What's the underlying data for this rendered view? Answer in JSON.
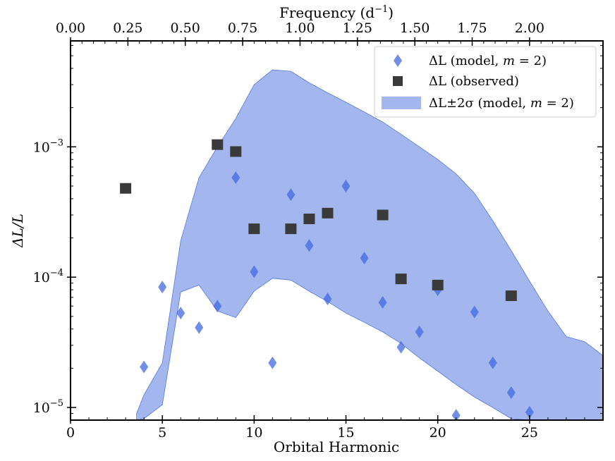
{
  "chart_data": {
    "type": "scatter",
    "title": "",
    "xlabel": "Orbital Harmonic",
    "ylabel": "ΔL/L",
    "xlim": [
      0,
      29
    ],
    "ylim": [
      8e-06,
      0.0065
    ],
    "yscale": "log",
    "x_ticks": [
      0,
      5,
      10,
      15,
      20,
      25
    ],
    "x_tick_labels": [
      "0",
      "5",
      "10",
      "15",
      "20",
      "25"
    ],
    "y_ticks": [
      1e-05,
      0.0001,
      0.001
    ],
    "y_tick_labels": [
      {
        "base": "10",
        "exp": "−5"
      },
      {
        "base": "10",
        "exp": "−4"
      },
      {
        "base": "10",
        "exp": "−3"
      }
    ],
    "top_axis": {
      "label": "Frequency (d⁻¹)",
      "label_base": "Frequency (d",
      "label_sup": "−1",
      "label_end": ")",
      "ticks": [
        0.0,
        0.25,
        0.5,
        0.75,
        1.0,
        1.25,
        1.5,
        1.75,
        2.0
      ],
      "tick_labels": [
        "0.00",
        "0.25",
        "0.50",
        "0.75",
        "1.00",
        "1.25",
        "1.50",
        "1.75",
        "2.00"
      ],
      "harmonics_per_unit": 12.5
    },
    "legend_position": "top-right",
    "series": [
      {
        "name": "ΔL (model, m = 2)",
        "marker": "diamond",
        "color": "#4169e1",
        "points": [
          [
            4,
            2.05e-05
          ],
          [
            5,
            8.4e-05
          ],
          [
            6,
            5.3e-05
          ],
          [
            7,
            4.1e-05
          ],
          [
            8,
            6e-05
          ],
          [
            9,
            0.00058
          ],
          [
            10,
            0.00011
          ],
          [
            11,
            2.2e-05
          ],
          [
            12,
            0.00043
          ],
          [
            13,
            0.000175
          ],
          [
            14,
            6.8e-05
          ],
          [
            15,
            0.0005
          ],
          [
            16,
            0.00014
          ],
          [
            17,
            6.4e-05
          ],
          [
            18,
            2.9e-05
          ],
          [
            19,
            3.8e-05
          ],
          [
            20,
            8e-05
          ],
          [
            21,
            8.7e-06
          ],
          [
            22,
            5.4e-05
          ],
          [
            23,
            2.2e-05
          ],
          [
            24,
            1.3e-05
          ],
          [
            25,
            9.2e-06
          ]
        ]
      },
      {
        "name": "ΔL (observed)",
        "marker": "square",
        "color": "#3a3a3a",
        "points": [
          [
            3,
            0.00048
          ],
          [
            8,
            0.00104
          ],
          [
            9,
            0.00092
          ],
          [
            10,
            0.000235
          ],
          [
            12,
            0.000235
          ],
          [
            13,
            0.00028
          ],
          [
            14,
            0.00031
          ],
          [
            17,
            0.0003
          ],
          [
            18,
            9.7e-05
          ],
          [
            20,
            8.7e-05
          ],
          [
            24,
            7.2e-05
          ]
        ]
      },
      {
        "name": "ΔL±2σ (model, m = 2)",
        "type": "band",
        "color": "#a3b6ee",
        "edge_color": "#5577dd",
        "x": [
          3.6,
          4,
          5,
          6,
          7,
          8,
          9,
          10,
          11,
          12,
          13,
          14,
          15,
          16,
          17,
          18,
          19,
          20,
          21,
          22,
          23,
          24,
          25,
          26,
          27,
          28,
          29
        ],
        "upper": [
          9e-06,
          1.25e-05,
          2.2e-05,
          0.00019,
          0.00058,
          0.001,
          0.00165,
          0.003,
          0.0039,
          0.0038,
          0.0031,
          0.0026,
          0.0022,
          0.00185,
          0.00155,
          0.00125,
          0.001,
          0.0008,
          0.00062,
          0.00044,
          0.00027,
          0.00016,
          9.3e-05,
          5.5e-05,
          3.5e-05,
          3.2e-05,
          2.5e-05
        ],
        "lower": [
          8e-06,
          8.2e-06,
          1.05e-05,
          7.7e-05,
          8.7e-05,
          5.5e-05,
          4.9e-05,
          7.8e-05,
          9.8e-05,
          9.5e-05,
          7.8e-05,
          6.5e-05,
          5.3e-05,
          4.5e-05,
          3.8e-05,
          3.1e-05,
          2.4e-05,
          1.9e-05,
          1.5e-05,
          1.2e-05,
          1e-05,
          8.2e-06,
          8e-06,
          8e-06,
          8e-06,
          8e-06,
          8e-06
        ]
      }
    ],
    "legend": {
      "items": [
        {
          "label": "ΔL (model, ",
          "italic": "m",
          "rest": " = 2)"
        },
        {
          "label": "ΔL (observed)",
          "italic": "",
          "rest": ""
        },
        {
          "label": "ΔL±2σ (model, ",
          "italic": "m",
          "rest": " = 2)"
        }
      ]
    }
  }
}
